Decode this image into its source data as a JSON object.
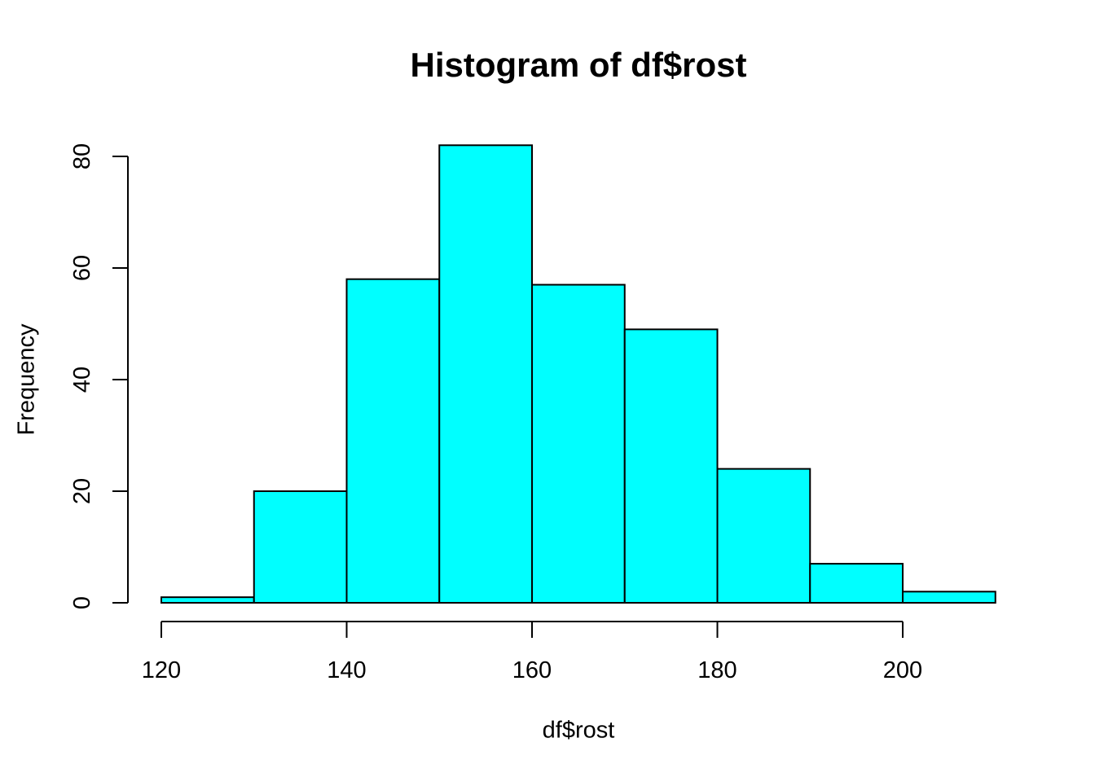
{
  "chart_data": {
    "type": "bar",
    "subtype": "histogram",
    "title": "Histogram of df$rost",
    "xlabel": "df$rost",
    "ylabel": "Frequency",
    "bin_breaks": [
      120,
      130,
      140,
      150,
      160,
      170,
      180,
      190,
      200,
      210
    ],
    "counts": [
      1,
      20,
      58,
      82,
      57,
      49,
      24,
      7,
      2
    ],
    "x_ticks": [
      120,
      140,
      160,
      180,
      200
    ],
    "y_ticks": [
      0,
      20,
      40,
      60,
      80
    ],
    "xlim": [
      120,
      210
    ],
    "ylim": [
      0,
      82
    ],
    "bar_fill": "#00FFFF",
    "bar_stroke": "#000000",
    "axis_color": "#000000",
    "background": "#FFFFFF",
    "grid": false,
    "legend": false
  }
}
